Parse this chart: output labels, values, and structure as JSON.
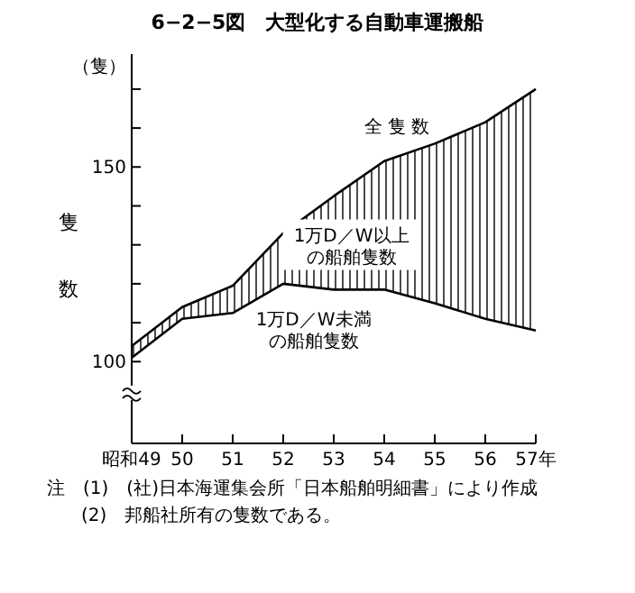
{
  "chart_data": {
    "type": "area",
    "title": "6−2−5図　大型化する自動車運搬船",
    "ylabel": "隻数",
    "categories": [
      "昭和49",
      "50",
      "51",
      "52",
      "53",
      "54",
      "55",
      "56",
      "57年"
    ],
    "series": [
      {
        "name": "全隻数",
        "color": "#000000",
        "values": [
          104,
          114,
          119.5,
          133,
          142.5,
          151.5,
          156,
          161.5,
          170
        ]
      },
      {
        "name": "1万D／W未満の船舶隻数",
        "type": "line",
        "color": "#000000",
        "values": [
          101,
          111,
          112.5,
          120,
          118.5,
          118.5,
          115,
          111,
          108
        ]
      }
    ],
    "ylim": [
      79,
      179
    ],
    "yticks": [
      100,
      {
        "value": 110,
        "label": null
      },
      {
        "value": 120,
        "label": null
      },
      {
        "value": 130,
        "label": null
      },
      {
        "value": 140,
        "label": null
      },
      150,
      {
        "value": 160,
        "label": null
      },
      {
        "value": 170,
        "label": null
      }
    ],
    "annotations": [
      "（隻）",
      "1万D／W以上の船舶隻数",
      "注　(1)　(社)日本海運集会所「日本船舶明細書」により作成",
      "(2)　邦船社所有の隻数である。"
    ]
  }
}
